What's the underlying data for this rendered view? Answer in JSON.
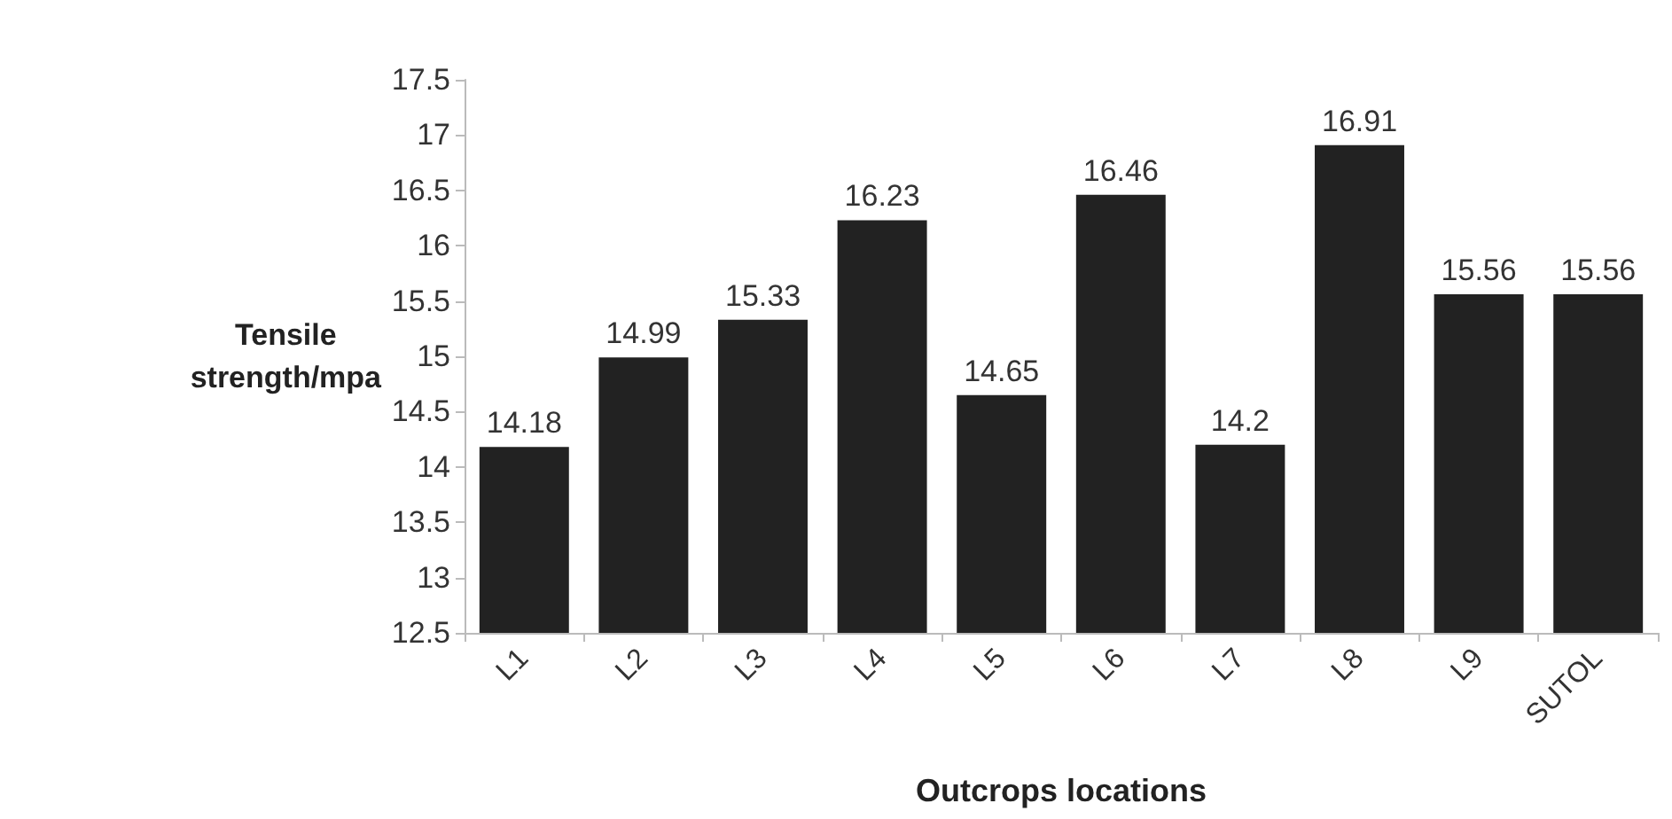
{
  "chart_data": {
    "type": "bar",
    "xlabel": "Outcrops locations",
    "ylabel": "Tensile strength/mpa",
    "categories": [
      "L1",
      "L2",
      "L3",
      "L4",
      "L5",
      "L6",
      "L7",
      "L8",
      "L9",
      "SUTOL"
    ],
    "values": [
      14.18,
      14.99,
      15.33,
      16.23,
      14.65,
      16.46,
      14.2,
      16.91,
      15.56,
      15.56
    ],
    "color": "#222222",
    "ylim": [
      12.5,
      17.5
    ],
    "yticks": [
      12.5,
      13,
      13.5,
      14,
      14.5,
      15,
      15.5,
      16,
      16.5,
      17,
      17.5
    ],
    "data_labels": true,
    "grid": false
  }
}
